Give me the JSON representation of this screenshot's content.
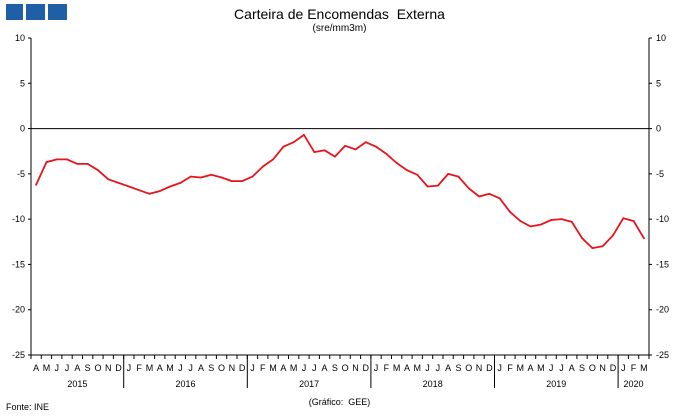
{
  "header": {
    "logo_colors": [
      "#1f5fa6",
      "#1f5fa6",
      "#1f5fa6"
    ]
  },
  "chart_data": {
    "type": "line",
    "title": "Carteira de Encomendas  Externa",
    "subtitle": "(sre/mm3m)",
    "source": "Fonte: INE",
    "credit": "(Gráfico:  GEE)",
    "ylim": [
      -25,
      10
    ],
    "yticks": [
      10,
      5,
      0,
      -5,
      -10,
      -15,
      -20,
      -25
    ],
    "grid": false,
    "zero_line": true,
    "line_color": "#e8141b",
    "x_start": "2015-04",
    "month_labels": [
      "A",
      "M",
      "J",
      "J",
      "A",
      "S",
      "O",
      "N",
      "D",
      "J",
      "F",
      "M",
      "A",
      "M",
      "J",
      "J",
      "A",
      "S",
      "O",
      "N",
      "D",
      "J",
      "F",
      "M",
      "A",
      "M",
      "J",
      "J",
      "A",
      "S",
      "O",
      "N",
      "D",
      "J",
      "F",
      "M",
      "A",
      "M",
      "J",
      "J",
      "A",
      "S",
      "O",
      "N",
      "D",
      "J",
      "F",
      "M",
      "A",
      "M",
      "J",
      "J",
      "A",
      "S",
      "O",
      "N",
      "D",
      "J",
      "F",
      "M"
    ],
    "years": [
      {
        "label": "2015",
        "start": "2015-04",
        "end": "2015-12"
      },
      {
        "label": "2016",
        "start": "2016-01",
        "end": "2016-12"
      },
      {
        "label": "2017",
        "start": "2017-01",
        "end": "2017-12"
      },
      {
        "label": "2018",
        "start": "2018-01",
        "end": "2018-12"
      },
      {
        "label": "2019",
        "start": "2019-01",
        "end": "2019-12"
      },
      {
        "label": "2020",
        "start": "2020-01",
        "end": "2020-03"
      }
    ],
    "series": [
      {
        "values": [
          -6.2,
          -3.7,
          -3.4,
          -3.4,
          -3.9,
          -3.9,
          -4.6,
          -5.6,
          -6.0,
          -6.4,
          -6.8,
          -7.2,
          -6.9,
          -6.4,
          -6.0,
          -5.3,
          -5.4,
          -5.1,
          -5.4,
          -5.8,
          -5.8,
          -5.3,
          -4.2,
          -3.4,
          -2.0,
          -1.5,
          -0.7,
          -2.6,
          -2.4,
          -3.1,
          -1.9,
          -2.3,
          -1.5,
          -2.0,
          -2.8,
          -3.8,
          -4.6,
          -5.1,
          -6.4,
          -6.3,
          -5.0,
          -5.3,
          -6.6,
          -7.5,
          -7.2,
          -7.7,
          -9.2,
          -10.2,
          -10.8,
          -10.6,
          -10.1,
          -10.0,
          -10.3,
          -12.1,
          -13.2,
          -13.0,
          -11.8,
          -9.9,
          -10.2,
          -12.1
        ]
      }
    ]
  }
}
